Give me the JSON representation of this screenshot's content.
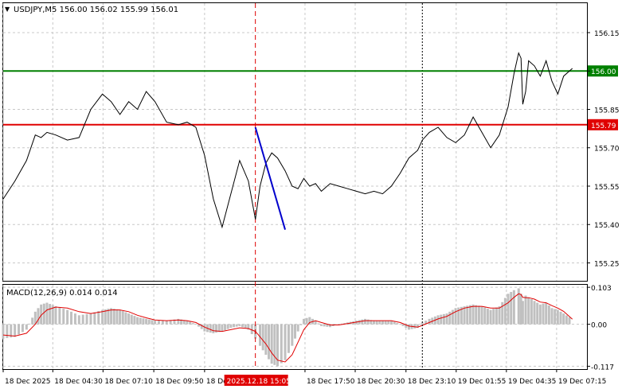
{
  "header": {
    "arrow": "▼",
    "title": "USDJPY,M5  156.00 156.02 155.99 156.01"
  },
  "macd_header": "MACD(12,26,9) 0.014 0.014",
  "colors": {
    "price": "#000000",
    "grid": "#c8c8c8",
    "green_level": "#008000",
    "red_level": "#e00000",
    "marker": "#e00000",
    "trend": "#0000cc",
    "macd_hist": "#c0c0c0",
    "macd_signal": "#e00000",
    "axis_tag_text": "#ffffff"
  },
  "chart_data": [
    {
      "type": "line",
      "title": "USDJPY,M5",
      "ohlc_shown": {
        "open": 156.0,
        "high": 156.02,
        "low": 155.99,
        "close": 156.01
      },
      "ylim": [
        155.18,
        156.265
      ],
      "y_ticks": [
        "156.15",
        "156.00",
        "155.85",
        "155.70",
        "155.55",
        "155.40",
        "155.25"
      ],
      "y_tick_values": [
        156.15,
        156.0,
        155.85,
        155.7,
        155.55,
        155.4,
        155.25
      ],
      "x_tick_labels": [
        "18 Dec 2025",
        "18 Dec 04:30",
        "18 Dec 07:10",
        "18 Dec 09:50",
        "18 Dec",
        "18 Dec 17:50",
        "18 Dec 20:30",
        "18 Dec 23:10",
        "19 Dec 01:55",
        "19 Dec 04:35",
        "19 Dec 07:15"
      ],
      "x_tick_frac": [
        0.0,
        0.085,
        0.171,
        0.258,
        0.345,
        0.517,
        0.603,
        0.69,
        0.776,
        0.862,
        0.948
      ],
      "levels": [
        {
          "label": "156.00",
          "value": 156.0,
          "role": "green"
        },
        {
          "label": "155.79",
          "value": 155.79,
          "role": "red"
        }
      ],
      "marker": {
        "label": "2025.12.18 15:05",
        "x_frac": 0.432
      },
      "secondary_vline_frac": 0.718,
      "trend_line": {
        "x_frac": [
          0.432,
          0.483
        ],
        "y": [
          155.78,
          155.38
        ]
      },
      "series": [
        {
          "x_frac": [
            0.0,
            0.02,
            0.04,
            0.055,
            0.065,
            0.075,
            0.09,
            0.11,
            0.13,
            0.15,
            0.17,
            0.185,
            0.2,
            0.215,
            0.23,
            0.245,
            0.26,
            0.28,
            0.3,
            0.315,
            0.33,
            0.345,
            0.36,
            0.375,
            0.39,
            0.405,
            0.42,
            0.432,
            0.44,
            0.45,
            0.46,
            0.47,
            0.483,
            0.495,
            0.505,
            0.515,
            0.525,
            0.535,
            0.545,
            0.56,
            0.575,
            0.59,
            0.605,
            0.62,
            0.635,
            0.65,
            0.665,
            0.68,
            0.695,
            0.71,
            0.718,
            0.73,
            0.745,
            0.76,
            0.775,
            0.79,
            0.805,
            0.82,
            0.835,
            0.85,
            0.865,
            0.875,
            0.883,
            0.887,
            0.89,
            0.895,
            0.9,
            0.91,
            0.92,
            0.93,
            0.94,
            0.95,
            0.96,
            0.975
          ],
          "y": [
            155.5,
            155.57,
            155.65,
            155.75,
            155.74,
            155.76,
            155.75,
            155.73,
            155.74,
            155.85,
            155.91,
            155.88,
            155.83,
            155.88,
            155.85,
            155.92,
            155.88,
            155.8,
            155.79,
            155.8,
            155.78,
            155.67,
            155.5,
            155.39,
            155.52,
            155.65,
            155.57,
            155.42,
            155.55,
            155.64,
            155.68,
            155.66,
            155.61,
            155.55,
            155.54,
            155.58,
            155.55,
            155.56,
            155.53,
            155.56,
            155.55,
            155.54,
            155.53,
            155.52,
            155.53,
            155.52,
            155.55,
            155.6,
            155.66,
            155.69,
            155.73,
            155.76,
            155.78,
            155.74,
            155.72,
            155.75,
            155.82,
            155.76,
            155.7,
            155.75,
            155.86,
            155.99,
            156.07,
            156.05,
            155.87,
            155.92,
            156.04,
            156.02,
            155.98,
            156.04,
            155.96,
            155.91,
            155.98,
            156.01
          ]
        }
      ]
    },
    {
      "type": "area",
      "title": "MACD(12,26,9) 0.014 0.014",
      "ylim": [
        -0.125,
        0.11
      ],
      "y_ticks": [
        "0.103",
        "0.00",
        "-0.117"
      ],
      "y_tick_values": [
        0.103,
        0.0,
        -0.117
      ],
      "histogram": {
        "x_frac": [
          0.0,
          0.02,
          0.04,
          0.055,
          0.065,
          0.075,
          0.09,
          0.11,
          0.13,
          0.15,
          0.17,
          0.185,
          0.2,
          0.215,
          0.23,
          0.245,
          0.26,
          0.28,
          0.3,
          0.315,
          0.33,
          0.345,
          0.36,
          0.375,
          0.39,
          0.405,
          0.42,
          0.432,
          0.44,
          0.45,
          0.46,
          0.47,
          0.483,
          0.495,
          0.505,
          0.515,
          0.525,
          0.535,
          0.545,
          0.56,
          0.575,
          0.59,
          0.605,
          0.62,
          0.635,
          0.65,
          0.665,
          0.68,
          0.695,
          0.71,
          0.718,
          0.73,
          0.745,
          0.76,
          0.775,
          0.79,
          0.805,
          0.82,
          0.835,
          0.85,
          0.865,
          0.875,
          0.883,
          0.887,
          0.89,
          0.895,
          0.9,
          0.91,
          0.92,
          0.93,
          0.94,
          0.95,
          0.96,
          0.975
        ],
        "values": [
          -0.04,
          -0.035,
          -0.015,
          0.035,
          0.055,
          0.06,
          0.05,
          0.04,
          0.025,
          0.03,
          0.04,
          0.045,
          0.04,
          0.03,
          0.02,
          0.015,
          0.01,
          0.01,
          0.015,
          0.01,
          0.0,
          -0.02,
          -0.025,
          -0.02,
          -0.01,
          -0.005,
          -0.015,
          -0.04,
          -0.06,
          -0.085,
          -0.11,
          -0.117,
          -0.1,
          -0.06,
          -0.02,
          0.015,
          0.02,
          0.01,
          -0.005,
          -0.008,
          0.0,
          0.005,
          0.01,
          0.015,
          0.01,
          0.01,
          0.01,
          0.0,
          -0.015,
          -0.01,
          0.005,
          0.015,
          0.025,
          0.03,
          0.045,
          0.05,
          0.055,
          0.05,
          0.04,
          0.05,
          0.085,
          0.095,
          0.1,
          0.085,
          0.065,
          0.08,
          0.075,
          0.065,
          0.055,
          0.06,
          0.045,
          0.04,
          0.03,
          0.014
        ]
      },
      "signal": {
        "x_frac": [
          0.0,
          0.02,
          0.04,
          0.055,
          0.065,
          0.075,
          0.09,
          0.11,
          0.13,
          0.15,
          0.17,
          0.185,
          0.2,
          0.215,
          0.23,
          0.245,
          0.26,
          0.28,
          0.3,
          0.315,
          0.33,
          0.345,
          0.36,
          0.375,
          0.39,
          0.405,
          0.42,
          0.432,
          0.44,
          0.45,
          0.46,
          0.47,
          0.483,
          0.495,
          0.505,
          0.515,
          0.525,
          0.535,
          0.545,
          0.56,
          0.575,
          0.59,
          0.605,
          0.62,
          0.635,
          0.65,
          0.665,
          0.68,
          0.695,
          0.71,
          0.718,
          0.73,
          0.745,
          0.76,
          0.775,
          0.79,
          0.805,
          0.82,
          0.835,
          0.85,
          0.865,
          0.875,
          0.883,
          0.887,
          0.89,
          0.895,
          0.9,
          0.91,
          0.92,
          0.93,
          0.94,
          0.95,
          0.96,
          0.975
        ],
        "values": [
          -0.03,
          -0.033,
          -0.025,
          0.0,
          0.025,
          0.04,
          0.048,
          0.045,
          0.035,
          0.03,
          0.035,
          0.04,
          0.04,
          0.035,
          0.025,
          0.018,
          0.012,
          0.01,
          0.012,
          0.01,
          0.005,
          -0.008,
          -0.018,
          -0.02,
          -0.015,
          -0.01,
          -0.012,
          -0.02,
          -0.035,
          -0.055,
          -0.08,
          -0.1,
          -0.105,
          -0.085,
          -0.05,
          -0.015,
          0.005,
          0.01,
          0.005,
          -0.002,
          -0.002,
          0.002,
          0.006,
          0.01,
          0.01,
          0.01,
          0.01,
          0.005,
          -0.005,
          -0.008,
          -0.003,
          0.005,
          0.015,
          0.022,
          0.035,
          0.045,
          0.05,
          0.05,
          0.045,
          0.045,
          0.06,
          0.075,
          0.085,
          0.083,
          0.075,
          0.074,
          0.074,
          0.07,
          0.062,
          0.06,
          0.052,
          0.045,
          0.036,
          0.014
        ]
      }
    }
  ]
}
